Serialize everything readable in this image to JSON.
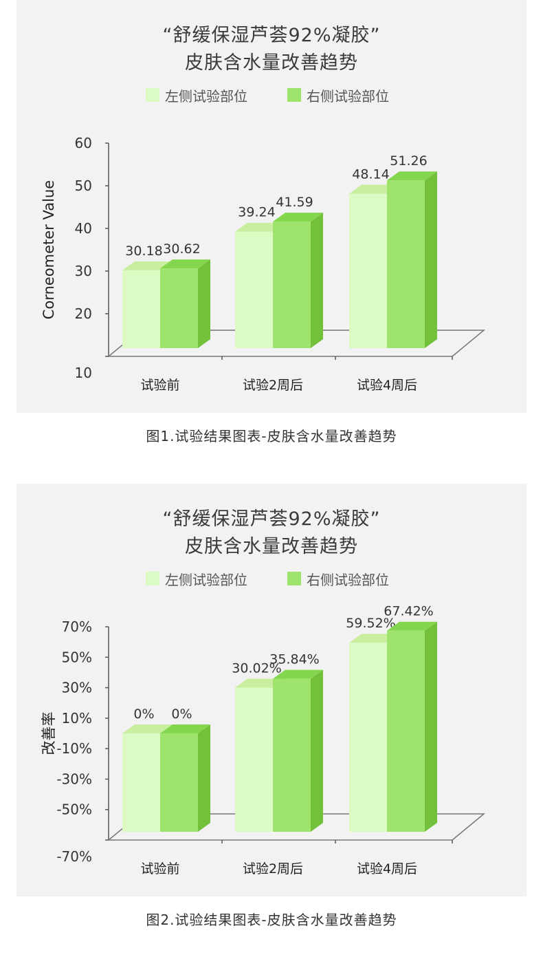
{
  "colors": {
    "left_front": "#dcfac4",
    "left_top": "#c9ee9f",
    "left_side": "#c2e49c",
    "right_front": "#9ee36c",
    "right_top": "#84d64e",
    "right_side": "#73c13b",
    "axis": "#555555"
  },
  "chart_data": [
    {
      "type": "bar",
      "title_line1": "“舒缓保湿芦荟92%凝胶”",
      "title_line2": "皮肤含水量改善趋势",
      "xlabel": "",
      "ylabel": "Corneometer Value",
      "ylim": [
        10,
        60
      ],
      "yticks": [
        "60",
        "50",
        "40",
        "30",
        "20",
        "10"
      ],
      "ytick_values": [
        60,
        50,
        40,
        30,
        20,
        10
      ],
      "categories": [
        "试验前",
        "试验2周后",
        "试验4周后"
      ],
      "series": [
        {
          "name": "左侧试验部位",
          "values": [
            30.18,
            39.24,
            48.14
          ],
          "labels": [
            "30.18",
            "39.24",
            "48.14"
          ]
        },
        {
          "name": "右侧试验部位",
          "values": [
            30.62,
            41.59,
            51.26
          ],
          "labels": [
            "30.62",
            "41.59",
            "51.26"
          ]
        }
      ],
      "legend": "top",
      "caption": "图1.试验结果图表-皮肤含水量改善趋势"
    },
    {
      "type": "bar",
      "title_line1": "“舒缓保湿芦荟92%凝胶”",
      "title_line2": "皮肤含水量改善趋势",
      "xlabel": "",
      "ylabel": "改善率",
      "ylim": [
        -70,
        70
      ],
      "yticks": [
        "70%",
        "50%",
        "30%",
        "10%",
        "-10%",
        "-30%",
        "-50%",
        "-70%"
      ],
      "ytick_values": [
        70,
        50,
        30,
        10,
        -10,
        -30,
        -50,
        -70
      ],
      "categories": [
        "试验前",
        "试验2周后",
        "试验4周后"
      ],
      "series": [
        {
          "name": "左侧试验部位",
          "values": [
            0,
            30.02,
            59.52
          ],
          "labels": [
            "0%",
            "30.02%",
            "59.52%"
          ]
        },
        {
          "name": "右侧试验部位",
          "values": [
            0,
            35.84,
            67.42
          ],
          "labels": [
            "0%",
            "35.84%",
            "67.42%"
          ]
        }
      ],
      "legend": "top",
      "caption": "图2.试验结果图表-皮肤含水量改善趋势"
    }
  ]
}
